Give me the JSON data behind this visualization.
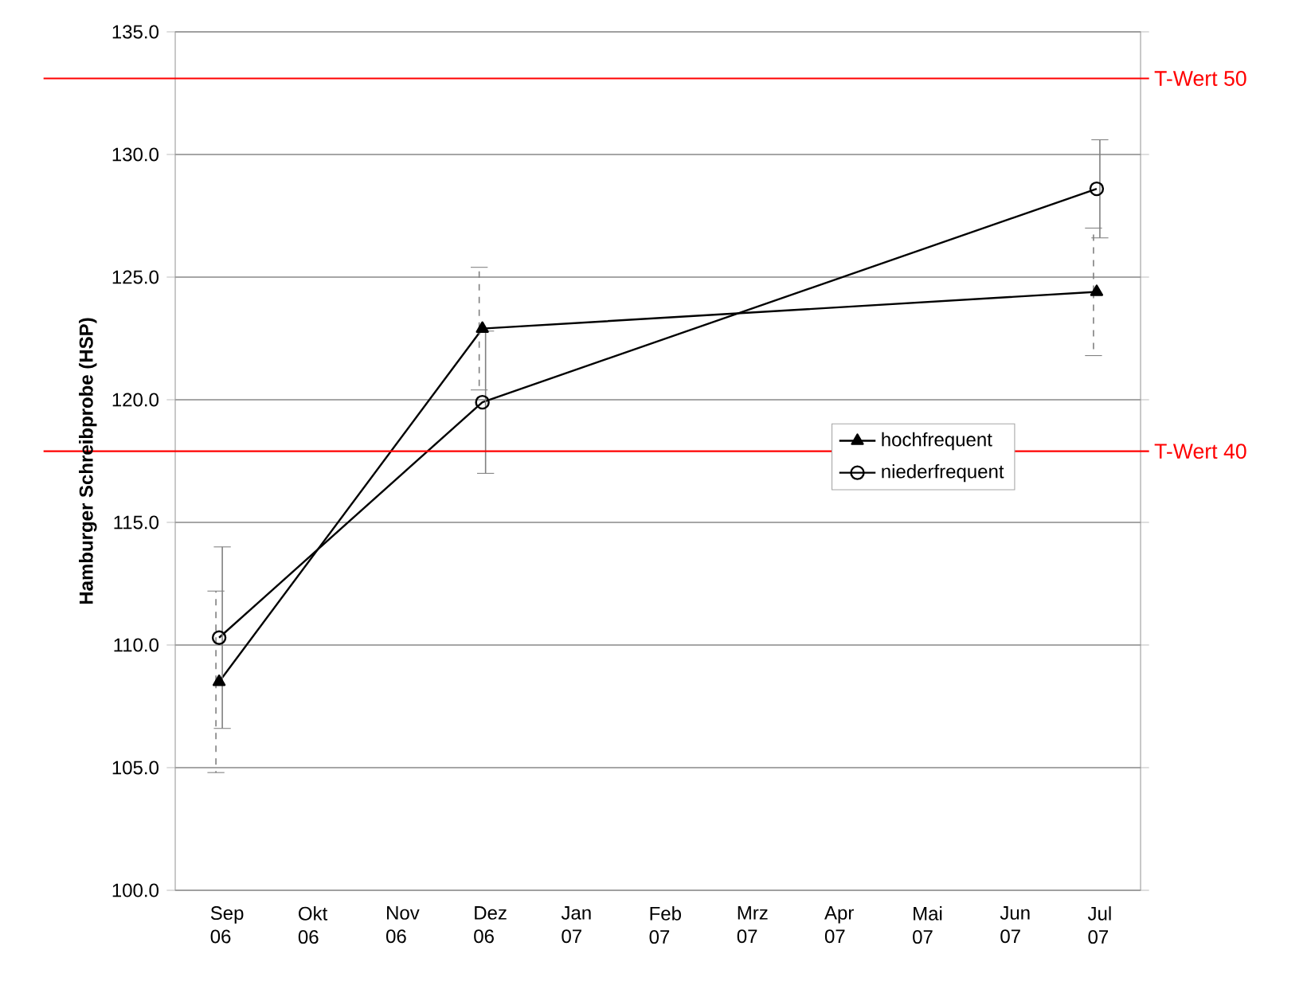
{
  "chart_data": {
    "type": "line",
    "ylabel": "Hamburger Schreibprobe (HSP)",
    "categories": [
      "Sep 06",
      "Okt 06",
      "Nov 06",
      "Dez 06",
      "Jan 07",
      "Feb 07",
      "Mrz 07",
      "Apr 07",
      "Mai 07",
      "Jun 07",
      "Jul 07"
    ],
    "series": [
      {
        "name": "hochfrequent",
        "color": "#000000",
        "marker": "triangle",
        "values": [
          108.5,
          null,
          null,
          122.9,
          null,
          null,
          null,
          null,
          null,
          null,
          124.4
        ],
        "errors": [
          3.7,
          null,
          null,
          2.5,
          null,
          null,
          null,
          null,
          null,
          null,
          2.6
        ]
      },
      {
        "name": "niederfrequent",
        "color": "#000000",
        "marker": "circle",
        "values": [
          110.3,
          null,
          null,
          119.9,
          null,
          null,
          null,
          null,
          null,
          null,
          128.6
        ],
        "errors": [
          3.7,
          null,
          null,
          2.9,
          null,
          null,
          null,
          null,
          null,
          null,
          2.0
        ]
      }
    ],
    "ylim": [
      100,
      135
    ],
    "yticks": [
      {
        "value": 100,
        "label": "100.0"
      },
      {
        "value": 105,
        "label": "105.0"
      },
      {
        "value": 110,
        "label": "110.0"
      },
      {
        "value": 115,
        "label": "115.0"
      },
      {
        "value": 120,
        "label": "120.0"
      },
      {
        "value": 125,
        "label": "125.0"
      },
      {
        "value": 130,
        "label": "130.0"
      },
      {
        "value": 135,
        "label": "135.0"
      }
    ],
    "grid": "y",
    "legend": "right",
    "line_style": "solid",
    "ref_lines": [
      {
        "axis": "y",
        "value": 133.1,
        "label": "T-Wert 50",
        "color": "#ff0000"
      },
      {
        "axis": "y",
        "value": 117.9,
        "label": "T-Wert 40",
        "color": "#ff0000"
      }
    ]
  }
}
